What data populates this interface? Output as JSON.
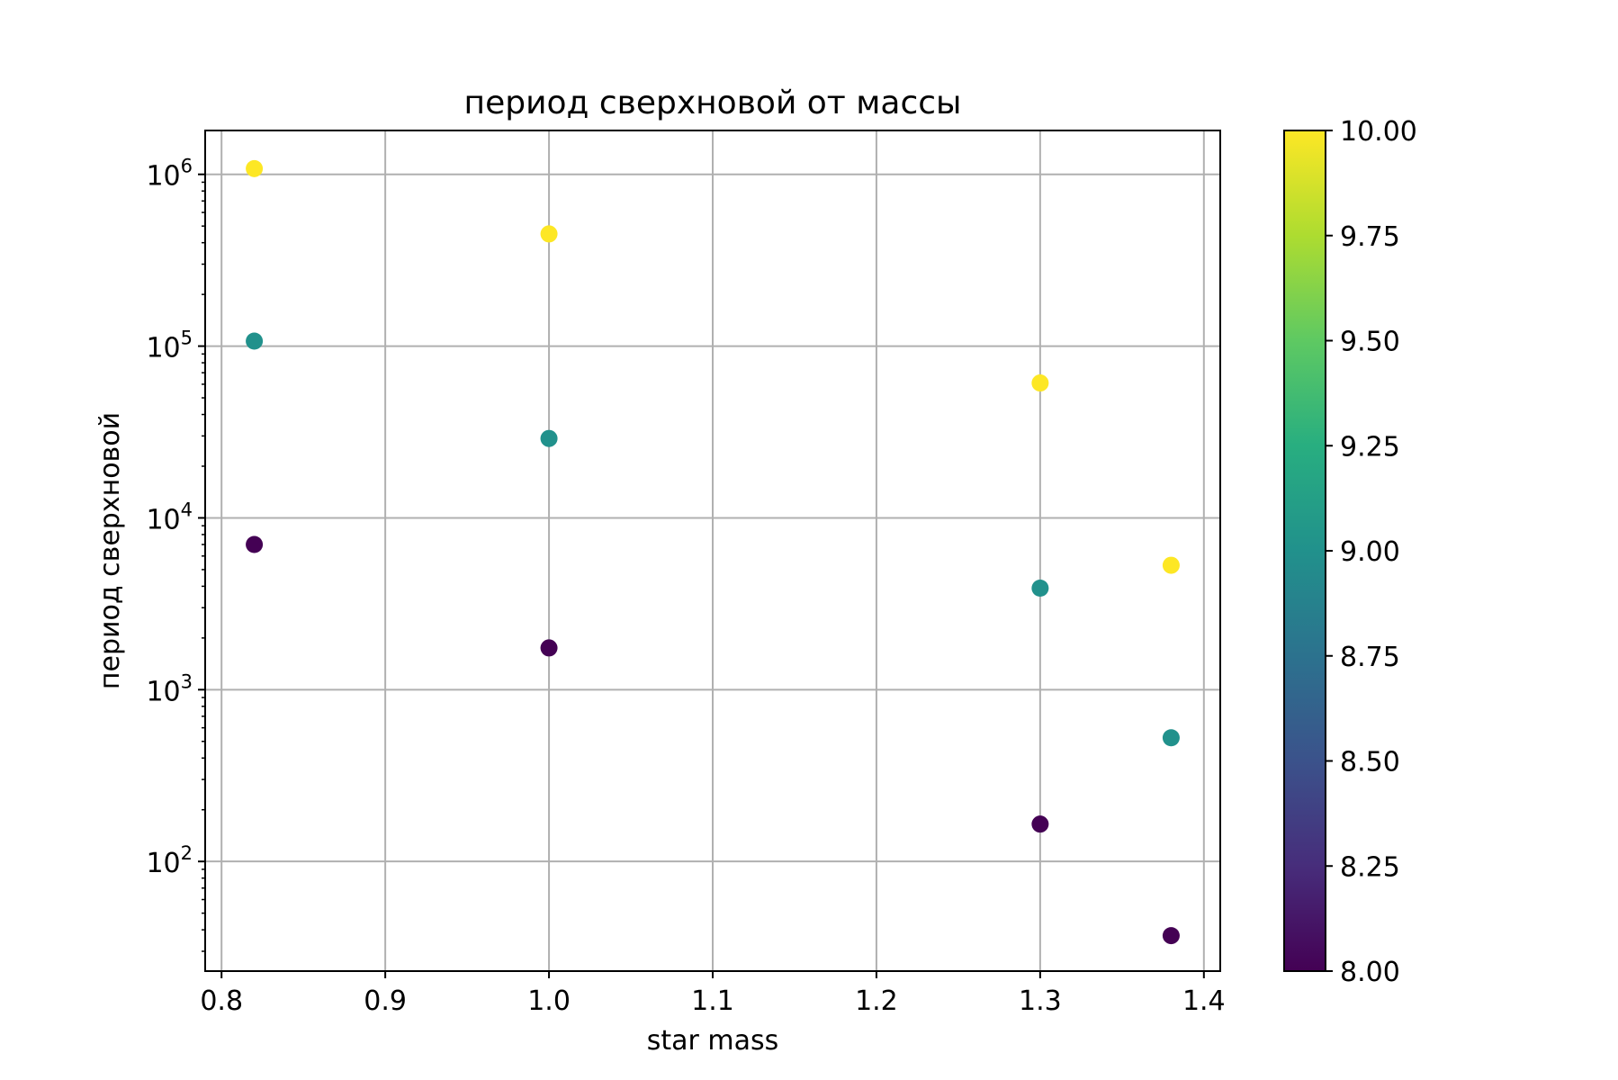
{
  "chart_data": {
    "type": "scatter",
    "title": "период сверхновой от массы",
    "xlabel": "star mass",
    "ylabel": "период сверхновой",
    "xlim": [
      0.79,
      1.41
    ],
    "ylim": [
      23,
      1800000
    ],
    "yscale": "log",
    "grid": true,
    "x_ticks": [
      "0.8",
      "0.9",
      "1.0",
      "1.1",
      "1.2",
      "1.3",
      "1.4"
    ],
    "x_tick_values": [
      0.8,
      0.9,
      1.0,
      1.1,
      1.2,
      1.3,
      1.4
    ],
    "y_ticks": [
      {
        "base": "10",
        "exp": "2",
        "value": 100
      },
      {
        "base": "10",
        "exp": "3",
        "value": 1000
      },
      {
        "base": "10",
        "exp": "4",
        "value": 10000
      },
      {
        "base": "10",
        "exp": "5",
        "value": 100000
      },
      {
        "base": "10",
        "exp": "6",
        "value": 1000000
      }
    ],
    "colormap": "viridis",
    "colorbar": {
      "range": [
        8.0,
        10.0
      ],
      "ticks": [
        "8.00",
        "8.25",
        "8.50",
        "8.75",
        "9.00",
        "9.25",
        "9.50",
        "9.75",
        "10.00"
      ],
      "tick_values": [
        8.0,
        8.25,
        8.5,
        8.75,
        9.0,
        9.25,
        9.5,
        9.75,
        10.0
      ]
    },
    "points": [
      {
        "x": 0.82,
        "y": 1080000,
        "c": 10
      },
      {
        "x": 0.82,
        "y": 107000,
        "c": 9
      },
      {
        "x": 0.82,
        "y": 7000,
        "c": 8
      },
      {
        "x": 1.0,
        "y": 450000,
        "c": 10
      },
      {
        "x": 1.0,
        "y": 29000,
        "c": 9
      },
      {
        "x": 1.0,
        "y": 1750,
        "c": 8
      },
      {
        "x": 1.3,
        "y": 61000,
        "c": 10
      },
      {
        "x": 1.3,
        "y": 3900,
        "c": 9
      },
      {
        "x": 1.3,
        "y": 165,
        "c": 8
      },
      {
        "x": 1.38,
        "y": 5300,
        "c": 10
      },
      {
        "x": 1.38,
        "y": 525,
        "c": 9
      },
      {
        "x": 1.38,
        "y": 37,
        "c": 8
      }
    ]
  }
}
